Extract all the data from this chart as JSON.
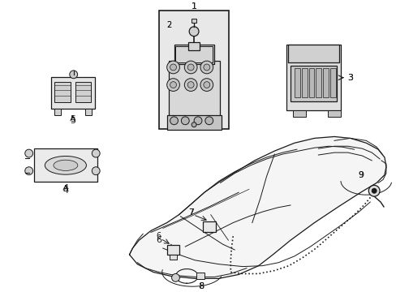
{
  "background_color": "#ffffff",
  "line_color": "#1a1a1a",
  "label_color": "#000000",
  "fig_width": 4.89,
  "fig_height": 3.6,
  "dpi": 100,
  "shade_color": "#e8e8e8",
  "light_shade": "#f0f0f0"
}
